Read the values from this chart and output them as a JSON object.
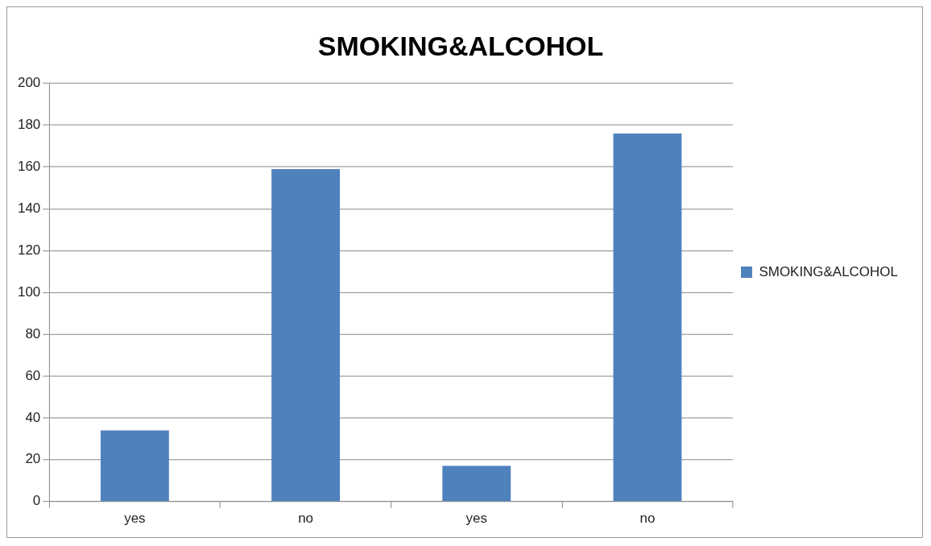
{
  "chart_data": {
    "type": "bar",
    "title": "SMOKING&ALCOHOL",
    "categories": [
      "yes",
      "no",
      "yes",
      "no"
    ],
    "series": [
      {
        "name": "SMOKING&ALCOHOL",
        "color": "#4f81bd",
        "values": [
          34,
          159,
          17,
          176
        ]
      }
    ],
    "ylim": [
      0,
      200
    ],
    "yticks": [
      0,
      20,
      40,
      60,
      80,
      100,
      120,
      140,
      160,
      180,
      200
    ],
    "grid": "y",
    "legend": "right"
  }
}
